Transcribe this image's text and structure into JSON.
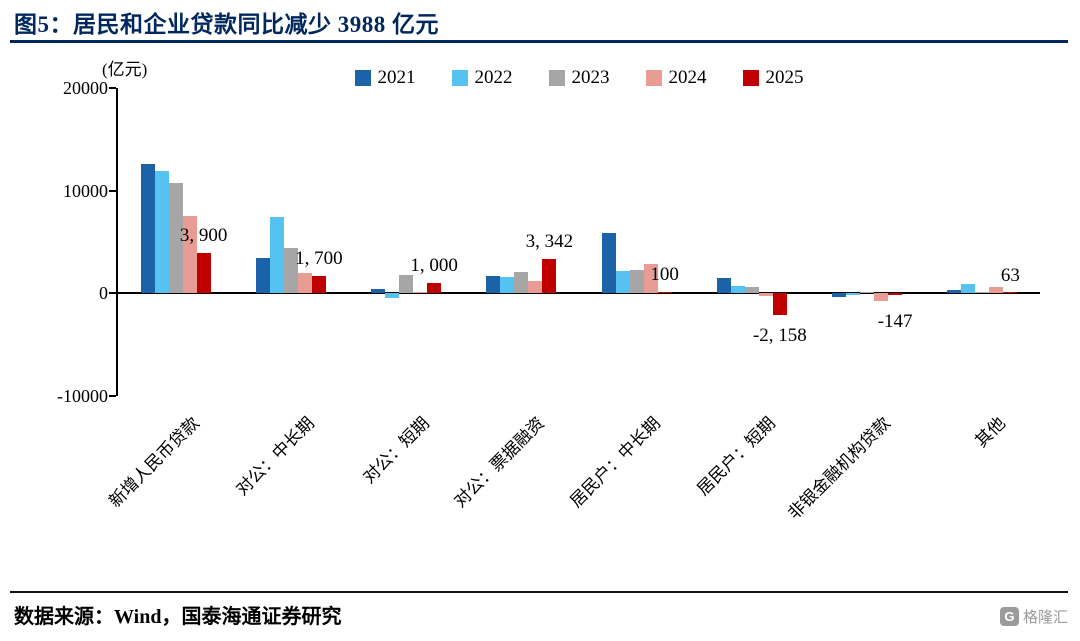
{
  "header": {
    "title": "图5：居民和企业贷款同比减少 3988 亿元"
  },
  "chart_data": {
    "type": "bar",
    "unit_label": "(亿元)",
    "ylim": [
      -10000,
      20000
    ],
    "yticks": [
      20000,
      10000,
      0,
      -10000
    ],
    "grid": "off",
    "legend_position": "top-center",
    "categories": [
      "新增人民币贷款",
      "对公：中长期",
      "对公：短期",
      "对公：票据融资",
      "居民户：中长期",
      "居民户：短期",
      "非银金融机构贷款",
      "其他"
    ],
    "series": [
      {
        "name": "2021",
        "color": "#1B62A8",
        "values": [
          12600,
          3450,
          400,
          1700,
          5900,
          1500,
          -400,
          300
        ]
      },
      {
        "name": "2022",
        "color": "#56C2F2",
        "values": [
          11900,
          7400,
          -500,
          1550,
          2150,
          700,
          -150,
          900
        ]
      },
      {
        "name": "2023",
        "color": "#A6A6A6",
        "values": [
          10700,
          4450,
          1750,
          2050,
          2300,
          600,
          100,
          120
        ]
      },
      {
        "name": "2024",
        "color": "#E89C94",
        "values": [
          7500,
          2000,
          50,
          1200,
          2900,
          -300,
          -700,
          600
        ]
      },
      {
        "name": "2025",
        "color": "#C00000",
        "values": [
          3900,
          1700,
          1000,
          3342,
          100,
          -2158,
          -147,
          63
        ]
      }
    ],
    "value_labels": [
      "3, 900",
      "1, 700",
      "1, 000",
      "3, 342",
      "100",
      "-2, 158",
      "-147",
      "63"
    ]
  },
  "footer": {
    "source": "数据来源：Wind，国泰海通证券研究",
    "watermark_logo": "G",
    "watermark_text": "格隆汇"
  }
}
